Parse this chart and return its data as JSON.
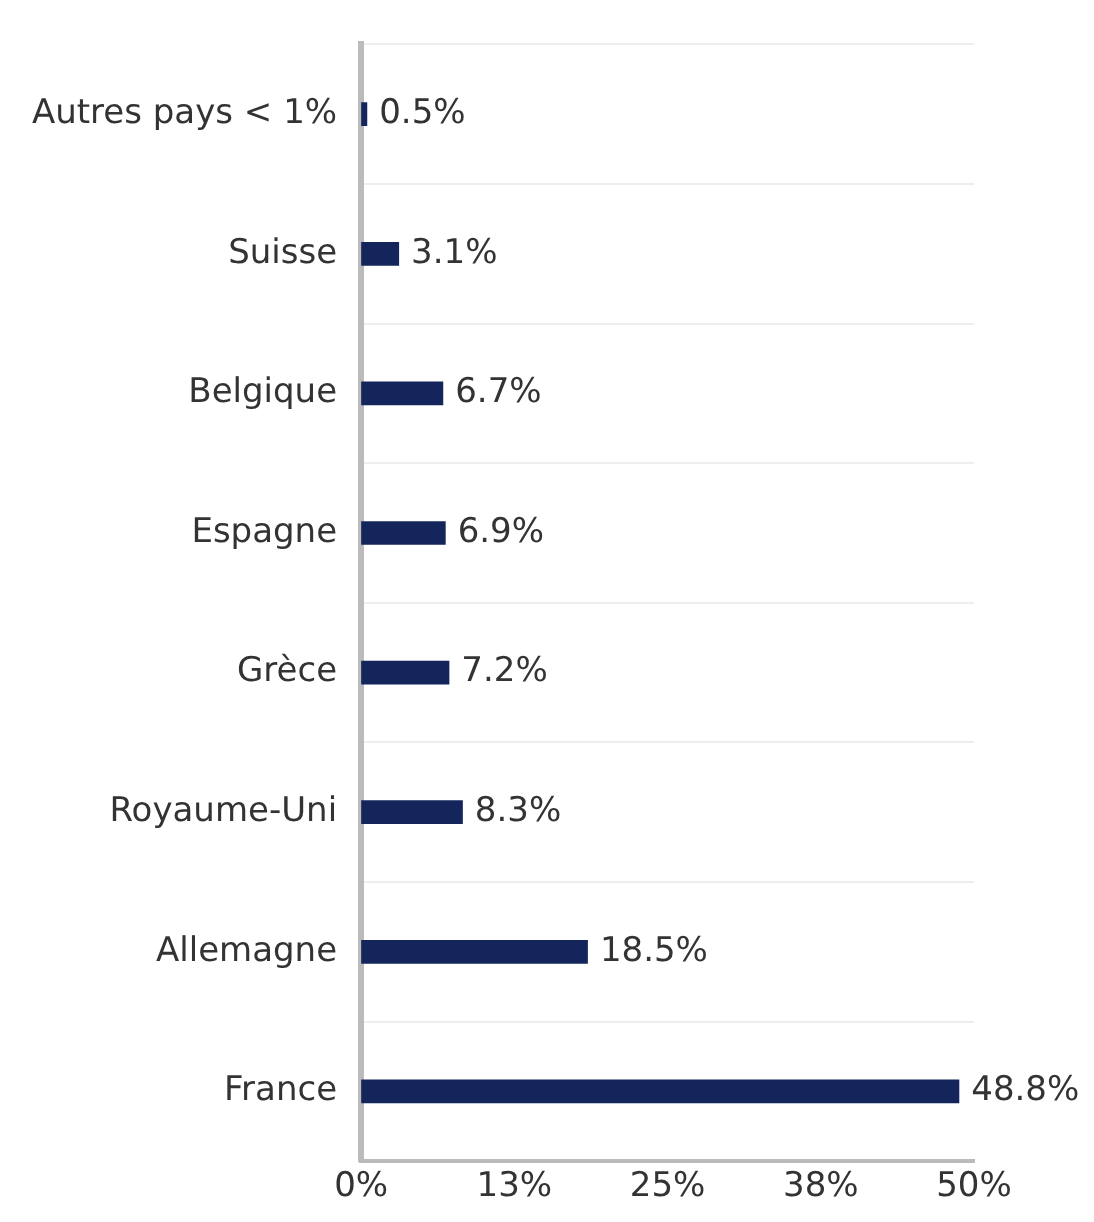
{
  "chart_data": {
    "type": "bar",
    "orientation": "horizontal",
    "categories": [
      "Autres pays < 1%",
      "Suisse",
      "Belgique",
      "Espagne",
      "Grèce",
      "Royaume-Uni",
      "Allemagne",
      "France"
    ],
    "values": [
      0.5,
      3.1,
      6.7,
      6.9,
      7.2,
      8.3,
      18.5,
      48.8
    ],
    "value_labels": [
      "0.5%",
      "3.1%",
      "6.7%",
      "6.9%",
      "7.2%",
      "8.3%",
      "18.5%",
      "48.8%"
    ],
    "color": "#13255a",
    "xlim": [
      0,
      50
    ],
    "xticks": [
      {
        "value": 0,
        "label": "0%"
      },
      {
        "value": 12.5,
        "label": "13%"
      },
      {
        "value": 25,
        "label": "25%"
      },
      {
        "value": 37.5,
        "label": "38%"
      },
      {
        "value": 50,
        "label": "50%"
      }
    ],
    "grid": "y",
    "legend": false
  }
}
